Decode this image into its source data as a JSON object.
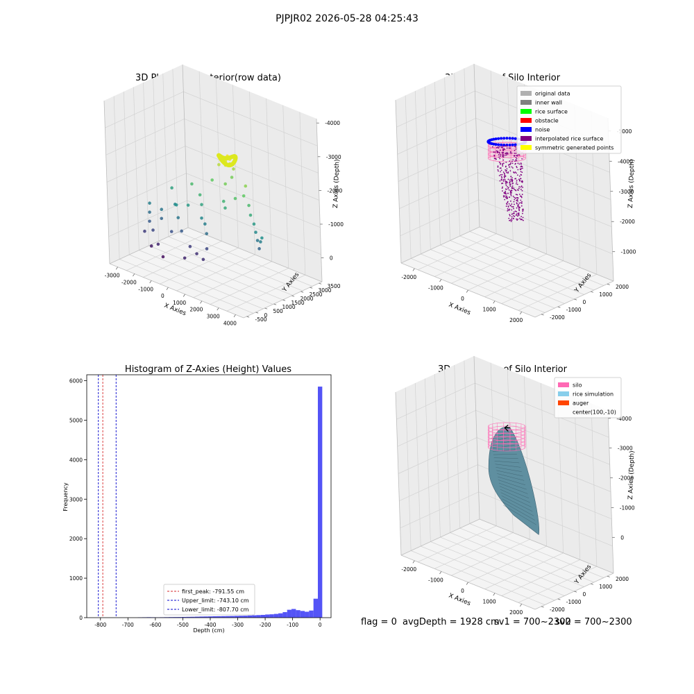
{
  "suptitle": "PJPJR02 2026-05-28 04:25:43",
  "footer": {
    "flag": "flag = 0",
    "avg": "avgDepth = 1928 cm",
    "sv1": "sv1 = 700~2300",
    "sv2": "sv2 = 700~2300"
  },
  "chart_data": [
    {
      "type": "scatter",
      "title": "3D Plot of Silo Interior(row data)",
      "xlabel": "X Axies",
      "ylabel": "Y Axies",
      "zlabel": "Z Axies (Depth)",
      "xticks": [
        "-3000",
        "-2000",
        "-1000",
        "0",
        "1000",
        "2000",
        "3000",
        "4000"
      ],
      "yticks": [
        "-500",
        "0",
        "500",
        "1000",
        "1500",
        "2000",
        "2500",
        "3000",
        "3500"
      ],
      "zticks": [
        "0",
        "-1000",
        "-2000",
        "-3000",
        "-4000"
      ],
      "colormap": [
        "#440154",
        "#3b528b",
        "#21918c",
        "#5ec962",
        "#fde725"
      ],
      "x": [
        -200,
        -100,
        0,
        100,
        200,
        -300,
        -150,
        50,
        250,
        350,
        -2600,
        -2400,
        -2200,
        -2000,
        -1800,
        -1500,
        -1200,
        -900,
        -600,
        -300,
        0,
        300,
        600,
        900,
        1200,
        -2300,
        -1900,
        -1400,
        -1000,
        -500,
        200,
        700,
        1100,
        1500,
        1800,
        2200,
        2500,
        2800,
        3000,
        3200,
        3400,
        3600,
        3800,
        -1700,
        -800,
        400,
        1300,
        -1100,
        600,
        1600,
        -2100,
        -300,
        900
      ],
      "y": [
        2800,
        2900,
        2700,
        2850,
        2750,
        2600,
        2950,
        2650,
        2900,
        2700,
        800,
        600,
        400,
        900,
        700,
        1200,
        1000,
        800,
        1100,
        1500,
        1300,
        1000,
        900,
        700,
        1500,
        200,
        300,
        100,
        500,
        600,
        400,
        300,
        500,
        1800,
        2000,
        1900,
        1700,
        1600,
        1500,
        1400,
        1300,
        1200,
        1100,
        0,
        -200,
        -100,
        100,
        1800,
        2100,
        2300,
        1600,
        2200,
        1700
      ],
      "z": [
        -1500,
        -1450,
        -1550,
        -1500,
        -1600,
        -1700,
        -1500,
        -1650,
        -1800,
        -2000,
        -3000,
        -3200,
        -3400,
        -3100,
        -3300,
        -2900,
        -2800,
        -3100,
        -2700,
        -2400,
        -2600,
        -2900,
        -3000,
        -3200,
        -2500,
        -3700,
        -3600,
        -3900,
        -3500,
        -3400,
        -3700,
        -3800,
        -3600,
        -2200,
        -2100,
        -2300,
        -2500,
        -2700,
        -2900,
        -3100,
        -3300,
        -3000,
        -2800,
        -4000,
        -4100,
        -3900,
        -3800,
        -2300,
        -2000,
        -1900,
        -2600,
        -2100,
        -2400
      ]
    },
    {
      "type": "scatter",
      "title": "3D classify of Silo Interior",
      "xlabel": "X Axies",
      "ylabel": "Y Axies",
      "zlabel": "Z Axies (Depth)",
      "xticks": [
        "-2000",
        "-1000",
        "0",
        "1000",
        "2000"
      ],
      "yticks": [
        "-2000",
        "-1000",
        "0",
        "1000",
        "2000"
      ],
      "zticks": [
        "-1000",
        "-2000",
        "-3000",
        "-4000",
        "-5000"
      ],
      "legend_position": "top-right",
      "legend": [
        {
          "label": "original data",
          "color": "#b0b0b0"
        },
        {
          "label": "inner wall",
          "color": "#808080"
        },
        {
          "label": "rice surface",
          "color": "#00ff00"
        },
        {
          "label": "obstacle",
          "color": "#ff0000"
        },
        {
          "label": "noise",
          "color": "#0000ff"
        },
        {
          "label": "interpolated rice surface",
          "color": "#800080"
        },
        {
          "label": "symmetric generated points",
          "color": "#ffff00"
        }
      ]
    },
    {
      "type": "bar",
      "title": "Histogram of Z-Axies (Height) Values",
      "xlabel": "Depth (cm)",
      "ylabel": "Frequency",
      "xlim": [
        -850,
        40
      ],
      "ylim": [
        0,
        6150
      ],
      "xticks": [
        "-800",
        "-700",
        "-600",
        "-500",
        "-400",
        "-300",
        "-200",
        "-100",
        "0"
      ],
      "yticks": [
        "0",
        "1000",
        "2000",
        "3000",
        "4000",
        "5000",
        "6000"
      ],
      "bar_color": "#4b4bf5",
      "bin_width": 16,
      "bins": [
        -664,
        -648,
        -632,
        -616,
        -600,
        -584,
        -568,
        -552,
        -536,
        -520,
        -504,
        -488,
        -472,
        -456,
        -440,
        -424,
        -408,
        -392,
        -376,
        -360,
        -344,
        -328,
        -312,
        -296,
        -280,
        -264,
        -248,
        -232,
        -216,
        -200,
        -184,
        -168,
        -152,
        -136,
        -120,
        -104,
        -88,
        -72,
        -56,
        -40,
        -24,
        -8
      ],
      "counts": [
        8,
        10,
        12,
        10,
        8,
        10,
        12,
        14,
        15,
        16,
        18,
        20,
        22,
        25,
        28,
        30,
        32,
        35,
        36,
        38,
        40,
        42,
        45,
        48,
        50,
        55,
        60,
        65,
        70,
        80,
        85,
        95,
        110,
        140,
        200,
        220,
        190,
        170,
        150,
        180,
        480,
        5850
      ],
      "vlines": [
        {
          "label": "first_peak: -791.55 cm",
          "x": -791.55,
          "color": "#d62728"
        },
        {
          "label": "Upper_limit: -743.10 cm",
          "x": -743.1,
          "color": "#0000cc"
        },
        {
          "label": "Lower_limit: -807.70 cm",
          "x": -807.7,
          "color": "#0000cc"
        }
      ],
      "legend_position": "lower-center"
    },
    {
      "type": "area",
      "title": "3D simulation of Silo Interior",
      "xlabel": "X Axies",
      "ylabel": "Y Axies",
      "zlabel": "Z Axies (Depth)",
      "xticks": [
        "-2000",
        "-1000",
        "0",
        "1000",
        "2000"
      ],
      "yticks": [
        "-2000",
        "-1000",
        "0",
        "1000",
        "2000"
      ],
      "zticks": [
        "0",
        "-1000",
        "-2000",
        "-3000",
        "-4000"
      ],
      "legend_position": "top-right",
      "legend": [
        {
          "label": "silo",
          "color": "#ff69b4"
        },
        {
          "label": "rice simulation",
          "color": "#87ceeb"
        },
        {
          "label": "auger",
          "color": "#ff4500"
        },
        {
          "label": "center(100,-10)",
          "color": ""
        }
      ]
    }
  ]
}
